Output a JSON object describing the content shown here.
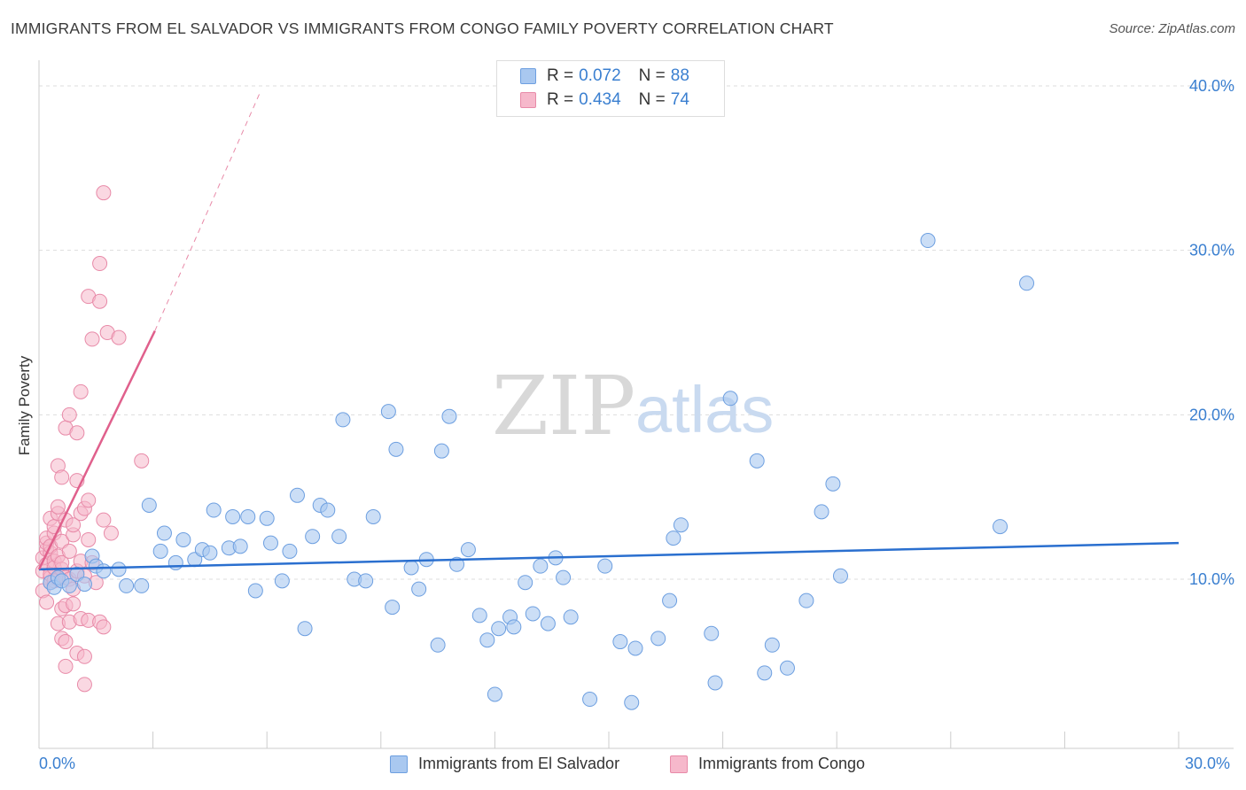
{
  "header": {
    "title": "IMMIGRANTS FROM EL SALVADOR VS IMMIGRANTS FROM CONGO FAMILY POVERTY CORRELATION CHART",
    "source": "Source: ZipAtlas.com"
  },
  "legend": {
    "r_label": "R =",
    "n_label": "N =",
    "entries": [
      {
        "r": "0.072",
        "n": "88"
      },
      {
        "r": "0.434",
        "n": "74"
      }
    ]
  },
  "watermark": {
    "zip": "ZIP",
    "atlas": "atlas"
  },
  "colors": {
    "blue_fill": "#a9c8f0",
    "blue_stroke": "#6d9fe0",
    "blue_line": "#2a6fcf",
    "pink_fill": "#f6b8cb",
    "pink_stroke": "#e88aa8",
    "pink_line": "#e0608c",
    "grid": "#dddddd",
    "tick_text": "#3a7fd0"
  },
  "chart_data": {
    "type": "scatter",
    "title": "IMMIGRANTS FROM EL SALVADOR VS IMMIGRANTS FROM CONGO FAMILY POVERTY CORRELATION CHART",
    "xlabel": "",
    "ylabel": "Family Poverty",
    "xlim": [
      0,
      30
    ],
    "ylim": [
      0,
      40
    ],
    "x_tick_labels": [
      "0.0%",
      "30.0%"
    ],
    "y_ticks": [
      10,
      20,
      30,
      40
    ],
    "y_tick_labels": [
      "10.0%",
      "20.0%",
      "30.0%",
      "40.0%"
    ],
    "series": [
      {
        "name": "Immigrants from El Salvador",
        "color": "blue",
        "r": 0.072,
        "n": 88,
        "trend": {
          "x0": 0,
          "y0": 10.6,
          "x1": 30,
          "y1": 12.2
        },
        "points": [
          [
            0.3,
            9.8
          ],
          [
            0.4,
            9.5
          ],
          [
            0.5,
            10.1
          ],
          [
            0.6,
            9.9
          ],
          [
            0.8,
            9.6
          ],
          [
            1.0,
            10.3
          ],
          [
            1.2,
            9.7
          ],
          [
            1.4,
            11.4
          ],
          [
            1.5,
            10.8
          ],
          [
            1.7,
            10.5
          ],
          [
            2.1,
            10.6
          ],
          [
            2.3,
            9.6
          ],
          [
            2.7,
            9.6
          ],
          [
            2.9,
            14.5
          ],
          [
            3.2,
            11.7
          ],
          [
            3.3,
            12.8
          ],
          [
            3.6,
            11.0
          ],
          [
            3.8,
            12.4
          ],
          [
            4.1,
            11.2
          ],
          [
            4.3,
            11.8
          ],
          [
            4.5,
            11.6
          ],
          [
            4.6,
            14.2
          ],
          [
            5.0,
            11.9
          ],
          [
            5.1,
            13.8
          ],
          [
            5.3,
            12.0
          ],
          [
            5.5,
            13.8
          ],
          [
            5.7,
            9.3
          ],
          [
            6.0,
            13.7
          ],
          [
            6.1,
            12.2
          ],
          [
            6.4,
            9.9
          ],
          [
            6.6,
            11.7
          ],
          [
            6.8,
            15.1
          ],
          [
            7.0,
            7.0
          ],
          [
            7.2,
            12.6
          ],
          [
            7.4,
            14.5
          ],
          [
            7.6,
            14.2
          ],
          [
            7.9,
            12.6
          ],
          [
            8.0,
            19.7
          ],
          [
            8.3,
            10.0
          ],
          [
            8.6,
            9.9
          ],
          [
            8.8,
            13.8
          ],
          [
            9.2,
            20.2
          ],
          [
            9.3,
            8.3
          ],
          [
            9.4,
            17.9
          ],
          [
            9.8,
            10.7
          ],
          [
            10.0,
            9.4
          ],
          [
            10.2,
            11.2
          ],
          [
            10.5,
            6.0
          ],
          [
            10.6,
            17.8
          ],
          [
            10.8,
            19.9
          ],
          [
            11.0,
            10.9
          ],
          [
            11.3,
            11.8
          ],
          [
            11.6,
            7.8
          ],
          [
            11.8,
            6.3
          ],
          [
            12.0,
            3.0
          ],
          [
            12.1,
            7.0
          ],
          [
            12.4,
            7.7
          ],
          [
            12.5,
            7.1
          ],
          [
            12.8,
            9.8
          ],
          [
            13.0,
            7.9
          ],
          [
            13.2,
            10.8
          ],
          [
            13.4,
            7.3
          ],
          [
            13.6,
            11.3
          ],
          [
            13.8,
            10.1
          ],
          [
            14.0,
            7.7
          ],
          [
            14.5,
            2.7
          ],
          [
            14.9,
            10.8
          ],
          [
            15.3,
            6.2
          ],
          [
            15.6,
            2.5
          ],
          [
            15.7,
            5.8
          ],
          [
            16.3,
            6.4
          ],
          [
            16.6,
            8.7
          ],
          [
            16.7,
            12.5
          ],
          [
            16.9,
            13.3
          ],
          [
            17.7,
            6.7
          ],
          [
            17.8,
            3.7
          ],
          [
            18.2,
            21.0
          ],
          [
            18.9,
            17.2
          ],
          [
            19.1,
            4.3
          ],
          [
            19.3,
            6.0
          ],
          [
            19.7,
            4.6
          ],
          [
            20.2,
            8.7
          ],
          [
            20.6,
            14.1
          ],
          [
            20.9,
            15.8
          ],
          [
            21.1,
            10.2
          ],
          [
            23.4,
            30.6
          ],
          [
            25.3,
            13.2
          ],
          [
            26.0,
            28.0
          ]
        ]
      },
      {
        "name": "Immigrants from Congo",
        "color": "pink",
        "r": 0.434,
        "n": 74,
        "trend": {
          "x0": 0,
          "y0": 10.6,
          "x1": 3.05,
          "y1": 25.1
        },
        "trend_extension": {
          "x0": 3.05,
          "y0": 25.1,
          "x1": 5.8,
          "y1": 39.5
        },
        "points": [
          [
            0.1,
            9.3
          ],
          [
            0.1,
            10.5
          ],
          [
            0.1,
            11.3
          ],
          [
            0.2,
            11.8
          ],
          [
            0.2,
            12.2
          ],
          [
            0.2,
            10.9
          ],
          [
            0.2,
            12.5
          ],
          [
            0.2,
            8.6
          ],
          [
            0.3,
            10.1
          ],
          [
            0.3,
            11.6
          ],
          [
            0.3,
            9.8
          ],
          [
            0.3,
            12.0
          ],
          [
            0.3,
            10.3
          ],
          [
            0.3,
            13.7
          ],
          [
            0.4,
            11.1
          ],
          [
            0.4,
            10.7
          ],
          [
            0.4,
            12.8
          ],
          [
            0.4,
            9.9
          ],
          [
            0.4,
            13.2
          ],
          [
            0.5,
            11.4
          ],
          [
            0.5,
            14.0
          ],
          [
            0.5,
            10.0
          ],
          [
            0.5,
            7.3
          ],
          [
            0.5,
            16.9
          ],
          [
            0.5,
            14.4
          ],
          [
            0.6,
            12.3
          ],
          [
            0.6,
            10.6
          ],
          [
            0.6,
            8.2
          ],
          [
            0.6,
            6.4
          ],
          [
            0.6,
            16.2
          ],
          [
            0.6,
            11.0
          ],
          [
            0.7,
            13.6
          ],
          [
            0.7,
            10.1
          ],
          [
            0.7,
            8.4
          ],
          [
            0.7,
            4.7
          ],
          [
            0.7,
            6.2
          ],
          [
            0.7,
            19.2
          ],
          [
            0.8,
            11.7
          ],
          [
            0.8,
            7.4
          ],
          [
            0.8,
            20.0
          ],
          [
            0.8,
            10.0
          ],
          [
            0.9,
            12.7
          ],
          [
            0.9,
            9.4
          ],
          [
            0.9,
            8.5
          ],
          [
            0.9,
            13.3
          ],
          [
            1.0,
            5.5
          ],
          [
            1.0,
            18.9
          ],
          [
            1.0,
            16.0
          ],
          [
            1.0,
            10.5
          ],
          [
            1.1,
            14.0
          ],
          [
            1.1,
            21.4
          ],
          [
            1.1,
            11.1
          ],
          [
            1.1,
            7.6
          ],
          [
            1.2,
            14.3
          ],
          [
            1.2,
            5.3
          ],
          [
            1.2,
            3.6
          ],
          [
            1.2,
            10.2
          ],
          [
            1.3,
            12.4
          ],
          [
            1.3,
            27.2
          ],
          [
            1.3,
            7.5
          ],
          [
            1.3,
            14.8
          ],
          [
            1.4,
            24.6
          ],
          [
            1.4,
            11.0
          ],
          [
            1.5,
            9.8
          ],
          [
            1.6,
            26.9
          ],
          [
            1.6,
            29.2
          ],
          [
            1.6,
            7.4
          ],
          [
            1.7,
            13.6
          ],
          [
            1.7,
            7.1
          ],
          [
            1.7,
            33.5
          ],
          [
            1.8,
            25.0
          ],
          [
            1.9,
            12.8
          ],
          [
            2.1,
            24.7
          ],
          [
            2.7,
            17.2
          ]
        ]
      }
    ]
  },
  "bottom_legend": [
    "Immigrants from El Salvador",
    "Immigrants from Congo"
  ]
}
